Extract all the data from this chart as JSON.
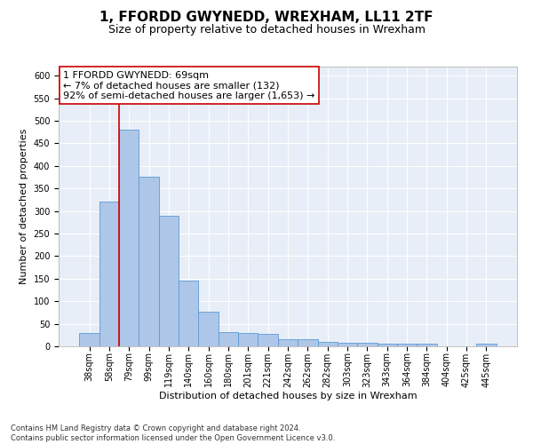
{
  "title": "1, FFORDD GWYNEDD, WREXHAM, LL11 2TF",
  "subtitle": "Size of property relative to detached houses in Wrexham",
  "xlabel": "Distribution of detached houses by size in Wrexham",
  "ylabel": "Number of detached properties",
  "bar_color": "#aec6e8",
  "bar_edge_color": "#5b9bd5",
  "categories": [
    "38sqm",
    "58sqm",
    "79sqm",
    "99sqm",
    "119sqm",
    "140sqm",
    "160sqm",
    "180sqm",
    "201sqm",
    "221sqm",
    "242sqm",
    "262sqm",
    "282sqm",
    "303sqm",
    "323sqm",
    "343sqm",
    "364sqm",
    "384sqm",
    "404sqm",
    "425sqm",
    "445sqm"
  ],
  "values": [
    30,
    320,
    480,
    375,
    290,
    145,
    76,
    32,
    29,
    27,
    16,
    15,
    9,
    7,
    7,
    5,
    5,
    5,
    0,
    0,
    5
  ],
  "ylim": [
    0,
    620
  ],
  "yticks": [
    0,
    50,
    100,
    150,
    200,
    250,
    300,
    350,
    400,
    450,
    500,
    550,
    600
  ],
  "vline_x_index": 1,
  "vline_color": "#cc0000",
  "annotation_text": "1 FFORDD GWYNEDD: 69sqm\n← 7% of detached houses are smaller (132)\n92% of semi-detached houses are larger (1,653) →",
  "box_edge_color": "#cc0000",
  "background_color": "#e8eef7",
  "grid_color": "#ffffff",
  "footer_text": "Contains HM Land Registry data © Crown copyright and database right 2024.\nContains public sector information licensed under the Open Government Licence v3.0.",
  "title_fontsize": 11,
  "subtitle_fontsize": 9,
  "xlabel_fontsize": 8,
  "ylabel_fontsize": 8,
  "tick_fontsize": 7,
  "annotation_fontsize": 8,
  "footer_fontsize": 6
}
